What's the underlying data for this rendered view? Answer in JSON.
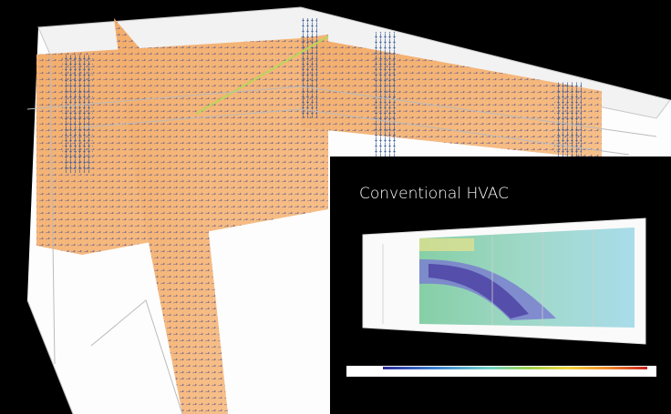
{
  "inset": {
    "title": "Conventional HVAC"
  }
}
